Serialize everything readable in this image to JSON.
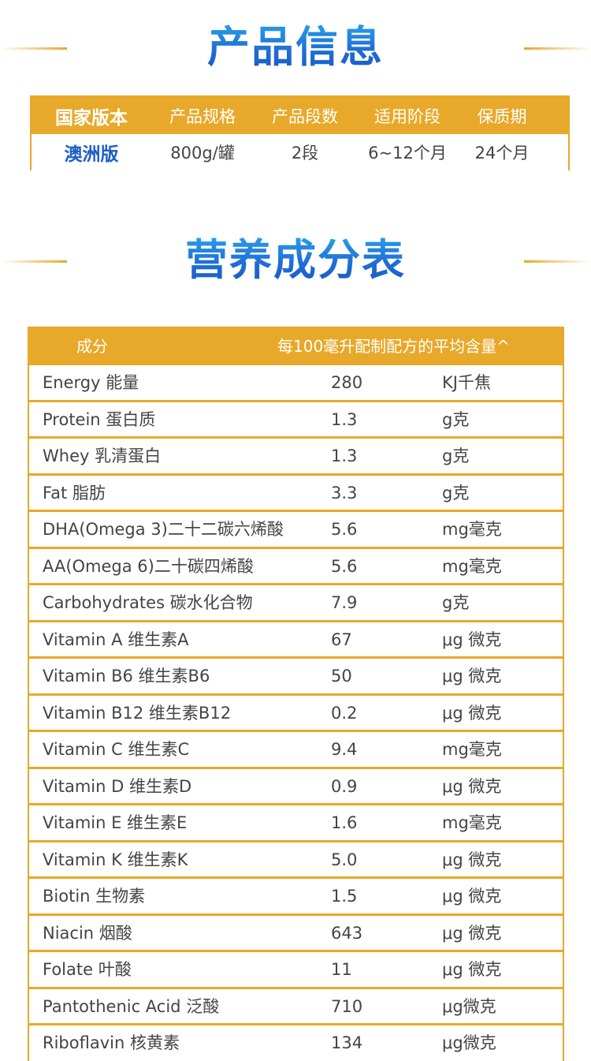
{
  "product_info": {
    "title": "产品信息",
    "headers": [
      "国家版本",
      "产品规格",
      "产品段数",
      "适用阶段",
      "保质期"
    ],
    "values": [
      "澳洲版",
      "800g/罐",
      "2段",
      "6~12个月",
      "24个月"
    ]
  },
  "nutrition": {
    "title": "营养成分表",
    "header_component": "成分",
    "header_amount": "每100毫升配制配方的平均含量^",
    "rows": [
      {
        "name": "Energy 能量",
        "value": "280",
        "unit": "KJ千焦"
      },
      {
        "name": "Protein 蛋白质",
        "value": "1.3",
        "unit": "g克"
      },
      {
        "name": "Whey 乳清蛋白",
        "value": "1.3",
        "unit": "g克"
      },
      {
        "name": "Fat 脂肪",
        "value": "3.3",
        "unit": "g克"
      },
      {
        "name": "DHA(Omega 3)二十二碳六烯酸",
        "value": "5.6",
        "unit": "mg毫克"
      },
      {
        "name": "AA(Omega 6)二十碳四烯酸",
        "value": "5.6",
        "unit": "mg毫克"
      },
      {
        "name": "Carbohydrates 碳水化合物",
        "value": "7.9",
        "unit": "g克"
      },
      {
        "name": "Vitamin A 维生素A",
        "value": "67",
        "unit": "μg 微克"
      },
      {
        "name": "Vitamin B6 维生素B6",
        "value": "50",
        "unit": "μg 微克"
      },
      {
        "name": "Vitamin B12 维生素B12",
        "value": "0.2",
        "unit": "μg 微克"
      },
      {
        "name": "Vitamin C 维生素C",
        "value": "9.4",
        "unit": "mg毫克"
      },
      {
        "name": "Vitamin D 维生素D",
        "value": "0.9",
        "unit": "μg 微克"
      },
      {
        "name": "Vitamin E 维生素E",
        "value": "1.6",
        "unit": "mg毫克"
      },
      {
        "name": "Vitamin K 维生素K",
        "value": "5.0",
        "unit": "μg 微克"
      },
      {
        "name": "Biotin 生物素",
        "value": "1.5",
        "unit": "μg 微克"
      },
      {
        "name": "Niacin 烟酸",
        "value": "643",
        "unit": "μg 微克"
      },
      {
        "name": "Folate 叶酸",
        "value": "11",
        "unit": "μg 微克"
      },
      {
        "name": "Pantothenic Acid 泛酸",
        "value": "710",
        "unit": "μg微克"
      },
      {
        "name": "Riboflavin 核黄素",
        "value": "134",
        "unit": "μg微克"
      }
    ]
  },
  "colors": {
    "accent_gold": "#e8a82a",
    "title_blue": "#1f6fd6",
    "highlight_blue": "#1e5fc4"
  }
}
